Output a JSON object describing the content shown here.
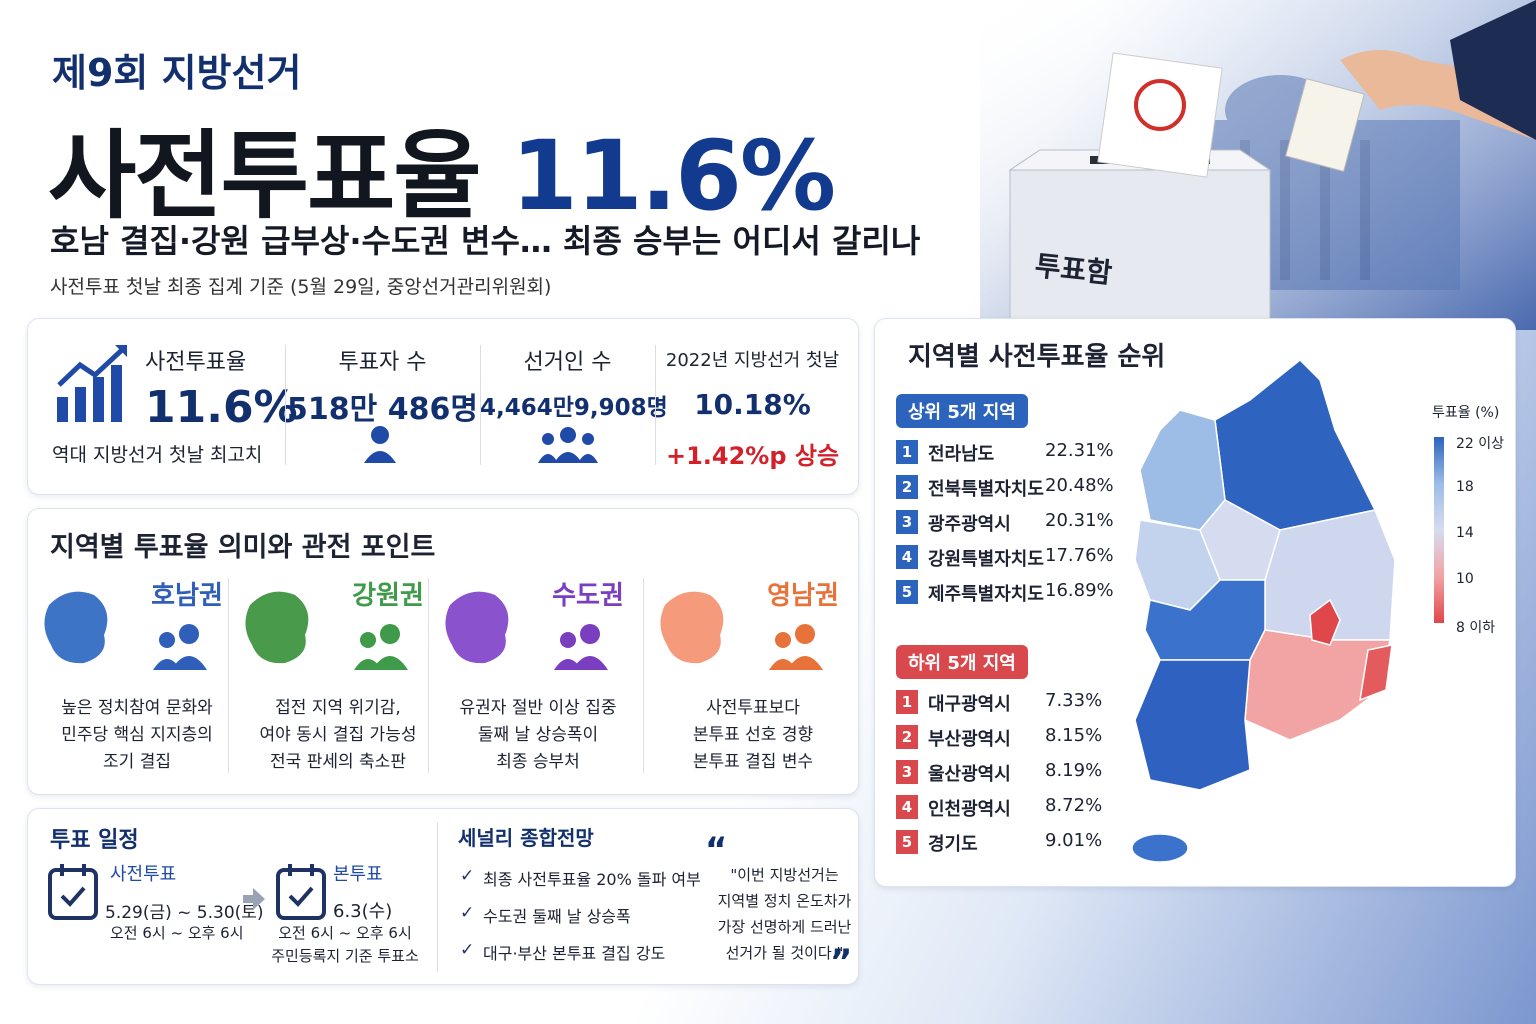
{
  "header": {
    "kicker": "제9회 지방선거",
    "title_text": "사전투표율",
    "title_value": "11.6%",
    "subtitle": "호남 결집·강원 급부상·수도권 변수… 최종 승부는 어디서 갈리나",
    "source": "사전투표 첫날 최종 집계 기준 (5월 29일, 중앙선거관리위원회)"
  },
  "ballot_box_label": "투표함",
  "stats": [
    {
      "label": "사전투표율",
      "value": "11.6%",
      "note": "역대 지방선거 첫날 최고치"
    },
    {
      "label": "투표자 수",
      "value": "518만 486명"
    },
    {
      "label": "선거인 수",
      "value": "4,464만9,908명"
    },
    {
      "label": "2022년 지방선거 첫날",
      "value": "10.18%",
      "change": "+1.42%p 상승"
    }
  ],
  "regions_section": {
    "title": "지역별 투표율 의미와 관전 포인트",
    "items": [
      {
        "name": "호남권",
        "lines": [
          "높은 정치참여 문화와",
          "민주당 핵심 지지층의",
          "조기 결집"
        ]
      },
      {
        "name": "강원권",
        "lines": [
          "접전 지역 위기감,",
          "여야 동시 결집 가능성",
          "전국 판세의 축소판"
        ]
      },
      {
        "name": "수도권",
        "lines": [
          "유권자 절반 이상 집중",
          "둘째 날 상승폭이",
          "최종 승부처"
        ]
      },
      {
        "name": "영남권",
        "lines": [
          "사전투표보다",
          "본투표 선호 경향",
          "본투표 결집 변수"
        ]
      }
    ]
  },
  "schedule": {
    "title": "투표 일정",
    "early": {
      "label": "사전투표",
      "date": "5.29(금) ~ 5.30(토)",
      "time": "오전 6시 ~ 오후 6시"
    },
    "main": {
      "label": "본투표",
      "date": "6.3(수)",
      "time": "오전 6시 ~ 오후 6시",
      "note": "주민등록지 기준 투표소"
    }
  },
  "scenarios": {
    "title": "세널리 종합전망",
    "items": [
      "최종 사전투표율 20% 돌파 여부",
      "수도권 둘째 날 상승폭",
      "대구·부산 본투표 결집 강도"
    ],
    "quote": [
      "\"이번 지방선거는",
      "지역별 정치 온도차가",
      "가장 선명하게 드러난",
      "선거가 될 것이다.\""
    ]
  },
  "ranking": {
    "title": "지역별 사전투표율 순위",
    "top": {
      "label": "상위 5개 지역",
      "rows": [
        {
          "rank": "1",
          "name": "전라남도",
          "rate": "22.31%"
        },
        {
          "rank": "2",
          "name": "전북특별자치도",
          "rate": "20.48%"
        },
        {
          "rank": "3",
          "name": "광주광역시",
          "rate": "20.31%"
        },
        {
          "rank": "4",
          "name": "강원특별자치도",
          "rate": "17.76%"
        },
        {
          "rank": "5",
          "name": "제주특별자치도",
          "rate": "16.89%"
        }
      ]
    },
    "bottom": {
      "label": "하위 5개 지역",
      "rows": [
        {
          "rank": "1",
          "name": "대구광역시",
          "rate": "7.33%"
        },
        {
          "rank": "2",
          "name": "부산광역시",
          "rate": "8.15%"
        },
        {
          "rank": "3",
          "name": "울산광역시",
          "rate": "8.19%"
        },
        {
          "rank": "4",
          "name": "인천광역시",
          "rate": "8.72%"
        },
        {
          "rank": "5",
          "name": "경기도",
          "rate": "9.01%"
        }
      ]
    }
  },
  "legend": {
    "title": "투표율 (%)",
    "labels": [
      "22 이상",
      "18",
      "14",
      "10",
      "8 이하"
    ]
  }
}
